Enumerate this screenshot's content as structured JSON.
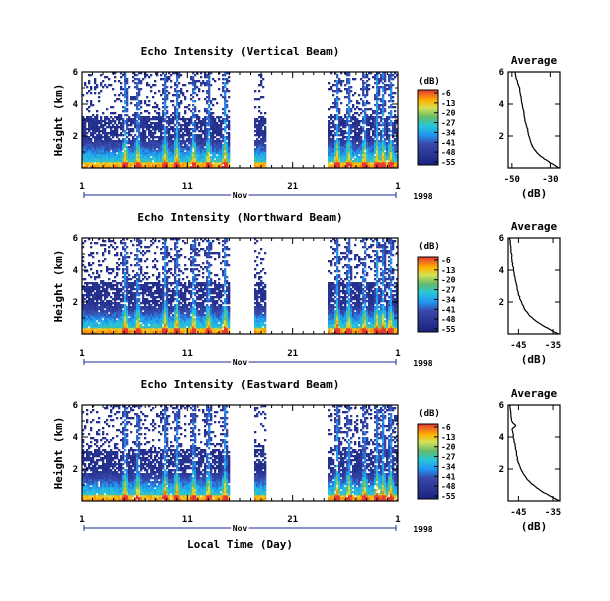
{
  "chart_data": [
    {
      "type": "heatmap",
      "title": "Echo Intensity (Vertical Beam)",
      "ylabel": "Height (km)",
      "xlabel": "",
      "y_ticks": [
        "6",
        "4",
        "2"
      ],
      "x_ticks": [
        "1",
        "11",
        "21",
        "1"
      ],
      "x_month": "Nov",
      "x_year": "1998",
      "x_range_days": [
        1,
        31
      ],
      "y_range_km": [
        0,
        6
      ],
      "data_gaps_days": [
        [
          15.0,
          17.3
        ],
        [
          18.5,
          24.4
        ]
      ],
      "colorbar": {
        "unit": "(dB)",
        "ticks": [
          "-6",
          "-13",
          "-20",
          "-27",
          "-34",
          "-41",
          "-48",
          "-55"
        ]
      },
      "profile": {
        "title": "Average",
        "xlabel": "(dB)",
        "x_ticks": [
          "-50",
          "-30"
        ],
        "y_ticks": [
          "6",
          "4",
          "2"
        ],
        "xlim": [
          -52,
          -25
        ],
        "ylim": [
          0,
          6
        ],
        "heights": [
          0.0,
          0.3,
          0.6,
          0.9,
          1.2,
          1.5,
          2.0,
          2.5,
          3.0,
          3.5,
          4.0,
          4.5,
          5.0,
          5.5,
          6.0
        ],
        "values": [
          -25.5,
          -29.5,
          -33.5,
          -36.5,
          -38.5,
          -40.0,
          -41.2,
          -42.0,
          -43.3,
          -43.8,
          -44.6,
          -45.5,
          -46.0,
          -47.5,
          -48.5
        ]
      }
    },
    {
      "type": "heatmap",
      "title": "Echo Intensity (Northward Beam)",
      "ylabel": "Height (km)",
      "xlabel": "",
      "y_ticks": [
        "6",
        "4",
        "2"
      ],
      "x_ticks": [
        "1",
        "11",
        "21",
        "1"
      ],
      "x_month": "Nov",
      "x_year": "1998",
      "x_range_days": [
        1,
        31
      ],
      "y_range_km": [
        0,
        6
      ],
      "data_gaps_days": [
        [
          15.0,
          17.3
        ],
        [
          18.5,
          24.4
        ]
      ],
      "colorbar": {
        "unit": "(dB)",
        "ticks": [
          "-6",
          "-13",
          "-20",
          "-27",
          "-34",
          "-41",
          "-48",
          "-55"
        ]
      },
      "profile": {
        "title": "Average",
        "xlabel": "(dB)",
        "x_ticks": [
          "-45",
          "-35"
        ],
        "y_ticks": [
          "6",
          "4",
          "2"
        ],
        "xlim": [
          -48,
          -33
        ],
        "ylim": [
          0,
          6
        ],
        "heights": [
          0.0,
          0.3,
          0.6,
          0.9,
          1.2,
          1.5,
          2.0,
          2.5,
          3.0,
          3.5,
          4.0,
          4.5,
          5.0,
          5.5,
          6.0
        ],
        "values": [
          -33.5,
          -36.0,
          -38.5,
          -40.5,
          -42.0,
          -43.0,
          -44.2,
          -45.0,
          -45.5,
          -46.0,
          -46.4,
          -46.8,
          -47.0,
          -47.3,
          -47.5
        ]
      }
    },
    {
      "type": "heatmap",
      "title": "Echo Intensity (Eastward Beam)",
      "ylabel": "Height (km)",
      "xlabel": "Local Time (Day)",
      "y_ticks": [
        "6",
        "4",
        "2"
      ],
      "x_ticks": [
        "1",
        "11",
        "21",
        "1"
      ],
      "x_month": "Nov",
      "x_year": "1998",
      "x_range_days": [
        1,
        31
      ],
      "y_range_km": [
        0,
        6
      ],
      "data_gaps_days": [
        [
          15.0,
          17.3
        ],
        [
          18.5,
          24.4
        ]
      ],
      "colorbar": {
        "unit": "(dB)",
        "ticks": [
          "-6",
          "-13",
          "-20",
          "-27",
          "-34",
          "-41",
          "-48",
          "-55"
        ]
      },
      "profile": {
        "title": "Average",
        "xlabel": "(dB)",
        "x_ticks": [
          "-45",
          "-35"
        ],
        "y_ticks": [
          "6",
          "4",
          "2"
        ],
        "xlim": [
          -48,
          -33
        ],
        "ylim": [
          0,
          6
        ],
        "heights": [
          0.0,
          0.3,
          0.6,
          0.9,
          1.2,
          1.5,
          2.0,
          2.5,
          3.0,
          3.5,
          4.0,
          4.5,
          4.7,
          5.0,
          6.0
        ],
        "values": [
          -33.2,
          -35.8,
          -38.2,
          -40.2,
          -41.8,
          -43.0,
          -44.4,
          -45.2,
          -45.6,
          -46.0,
          -46.5,
          -46.8,
          -45.8,
          -47.0,
          -47.5
        ]
      }
    }
  ]
}
